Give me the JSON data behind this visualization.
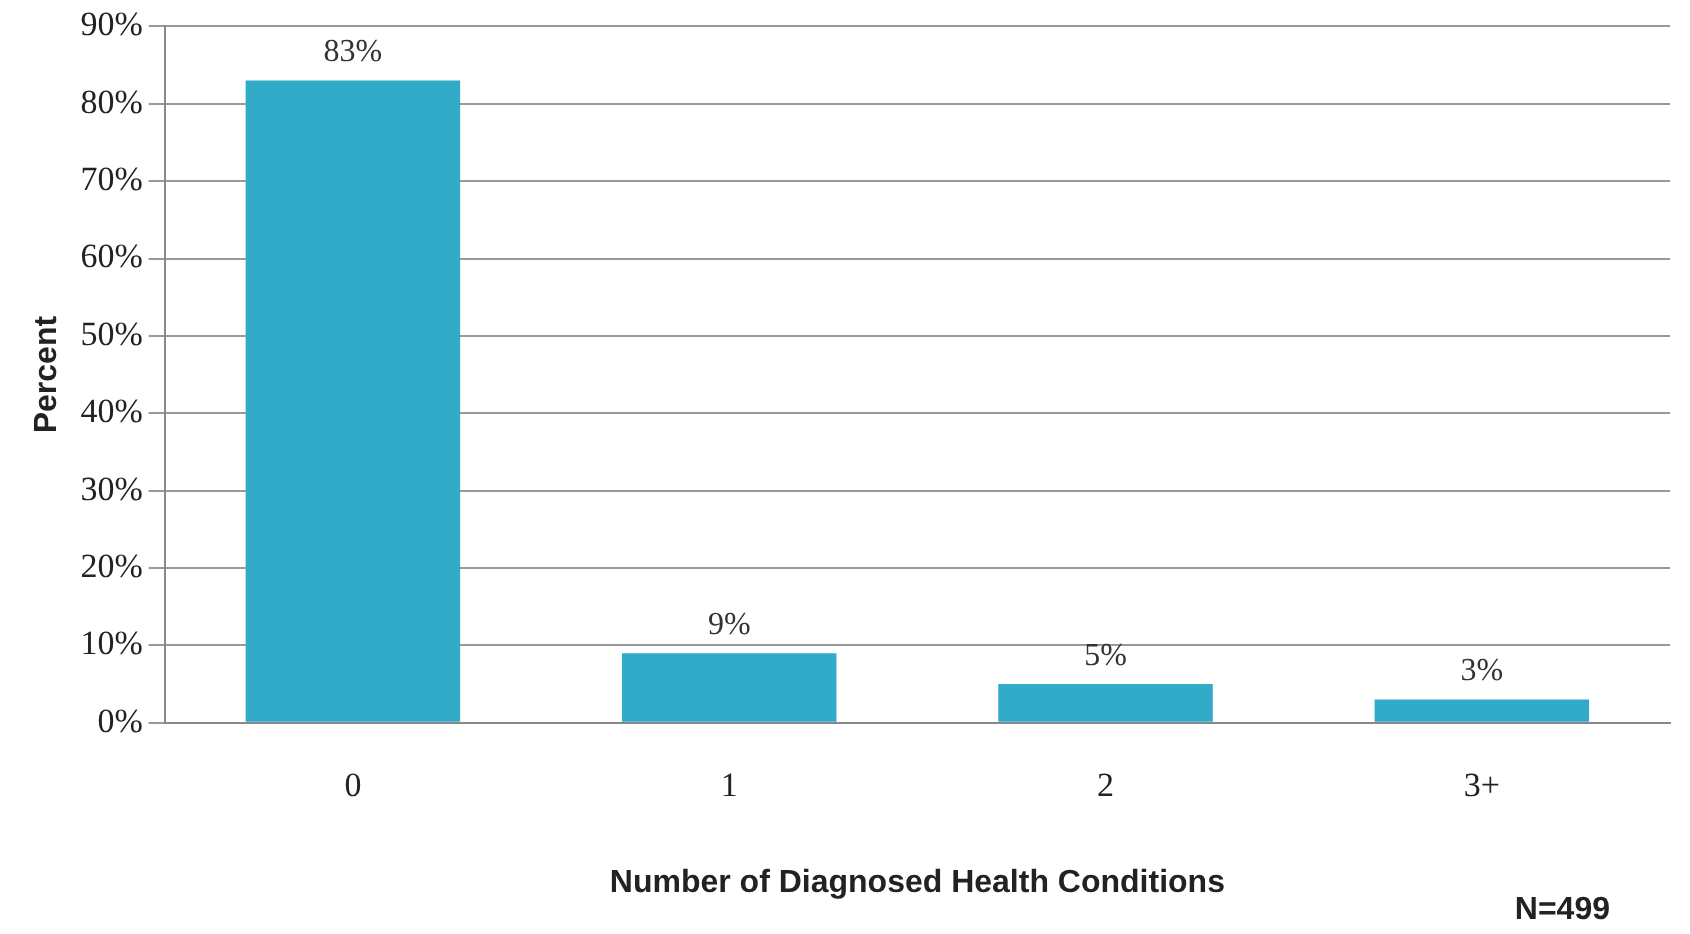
{
  "chart_data": {
    "type": "bar",
    "xlabel": "Number of Diagnosed Health Conditions",
    "ylabel": "Percent",
    "categories": [
      "0",
      "1",
      "2",
      "3+"
    ],
    "values": [
      83,
      9,
      5,
      3
    ],
    "value_labels": [
      "83%",
      "9%",
      "5%",
      "3%"
    ],
    "color": "#31abc8",
    "ylim": [
      0,
      90
    ],
    "yticks": [
      {
        "value": 0,
        "label": "0%"
      },
      {
        "value": 10,
        "label": "10%"
      },
      {
        "value": 20,
        "label": "20%"
      },
      {
        "value": 30,
        "label": "30%"
      },
      {
        "value": 40,
        "label": "40%"
      },
      {
        "value": 50,
        "label": "50%"
      },
      {
        "value": 60,
        "label": "60%"
      },
      {
        "value": 70,
        "label": "70%"
      },
      {
        "value": 80,
        "label": "80%"
      },
      {
        "value": 90,
        "label": "90%"
      }
    ],
    "grid": "y",
    "legend": false,
    "annotations": [
      "N=499"
    ]
  }
}
